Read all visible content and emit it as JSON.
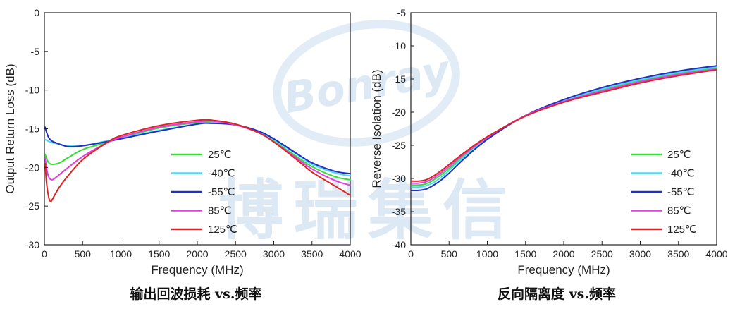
{
  "colors": {
    "25C": "#33dd33",
    "-40C": "#4fd8f0",
    "-55C": "#1f2fc8",
    "85C": "#e23ee3",
    "125C": "#e02222"
  },
  "watermark": {
    "logo_text": "Bonray",
    "chars": "博瑞集信"
  },
  "chart_data": [
    {
      "type": "line",
      "caption": "输出回波损耗 vs.频率",
      "xlabel": "Frequency (MHz)",
      "ylabel": "Output Return Loss (dB)",
      "xlim": [
        0,
        4000
      ],
      "ylim": [
        -30,
        0
      ],
      "xticks": [
        0,
        500,
        1000,
        1500,
        2000,
        2500,
        3000,
        3500,
        4000
      ],
      "yticks": [
        0,
        -5,
        -10,
        -15,
        -20,
        -25,
        -30
      ],
      "legend_position": "bottom-center",
      "series": [
        {
          "name": "25℃",
          "color_key": "25C",
          "x": [
            10,
            50,
            100,
            200,
            300,
            500,
            800,
            1000,
            1500,
            2000,
            2200,
            2500,
            2800,
            3000,
            3300,
            3500,
            3800,
            4000
          ],
          "y": [
            -18.3,
            -19.3,
            -19.6,
            -19.4,
            -18.8,
            -17.7,
            -16.8,
            -16.2,
            -14.9,
            -14.2,
            -14.1,
            -14.5,
            -15.5,
            -16.6,
            -18.6,
            -19.9,
            -21.2,
            -21.6
          ]
        },
        {
          "name": "-40℃",
          "color_key": "-40C",
          "x": [
            10,
            50,
            100,
            200,
            300,
            500,
            800,
            1000,
            1500,
            2000,
            2200,
            2500,
            2800,
            3000,
            3300,
            3500,
            3800,
            4000
          ],
          "y": [
            -16.4,
            -16.6,
            -16.8,
            -17.0,
            -17.2,
            -17.2,
            -16.6,
            -16.2,
            -15.2,
            -14.4,
            -14.2,
            -14.5,
            -15.4,
            -16.4,
            -18.3,
            -19.6,
            -20.7,
            -21.1
          ]
        },
        {
          "name": "-55℃",
          "color_key": "-55C",
          "x": [
            10,
            30,
            60,
            100,
            200,
            300,
            400,
            500,
            800,
            1000,
            1500,
            2000,
            2200,
            2500,
            2800,
            3000,
            3300,
            3500,
            3800,
            4000
          ],
          "y": [
            -14.8,
            -15.5,
            -16.2,
            -16.6,
            -17.0,
            -17.3,
            -17.3,
            -17.2,
            -16.7,
            -16.3,
            -15.3,
            -14.4,
            -14.3,
            -14.5,
            -15.3,
            -16.3,
            -18.2,
            -19.4,
            -20.5,
            -20.8
          ]
        },
        {
          "name": "85℃",
          "color_key": "85C",
          "x": [
            10,
            30,
            60,
            100,
            150,
            200,
            300,
            500,
            800,
            1000,
            1500,
            2000,
            2200,
            2500,
            2800,
            3000,
            3300,
            3500,
            3800,
            4000
          ],
          "y": [
            -18.8,
            -20.2,
            -21.3,
            -21.6,
            -21.3,
            -20.9,
            -20.1,
            -18.6,
            -16.9,
            -16.1,
            -14.8,
            -14.1,
            -14.0,
            -14.5,
            -15.5,
            -16.7,
            -18.8,
            -20.2,
            -21.7,
            -22.3
          ]
        },
        {
          "name": "125℃",
          "color_key": "125C",
          "x": [
            10,
            30,
            60,
            80,
            100,
            150,
            200,
            300,
            500,
            800,
            1000,
            1500,
            2000,
            2200,
            2500,
            2800,
            3000,
            3300,
            3500,
            3800,
            4000
          ],
          "y": [
            -19.5,
            -22.2,
            -24.0,
            -24.4,
            -24.2,
            -23.3,
            -22.5,
            -21.2,
            -19.0,
            -16.9,
            -15.9,
            -14.6,
            -13.9,
            -13.9,
            -14.4,
            -15.5,
            -16.7,
            -19.0,
            -20.6,
            -22.4,
            -23.6
          ]
        }
      ]
    },
    {
      "type": "line",
      "caption": "反向隔离度 vs.频率",
      "xlabel": "Frequency (MHz)",
      "ylabel": "Reverse Isolation (dB)",
      "xlim": [
        0,
        4000
      ],
      "ylim": [
        -40,
        -5
      ],
      "xticks": [
        0,
        500,
        1000,
        1500,
        2000,
        2500,
        3000,
        3500,
        4000
      ],
      "yticks": [
        -5,
        -10,
        -15,
        -20,
        -25,
        -30,
        -35,
        -40
      ],
      "legend_position": "bottom-right",
      "series": [
        {
          "name": "25℃",
          "color_key": "25C",
          "x": [
            10,
            100,
            200,
            300,
            400,
            500,
            700,
            1000,
            1500,
            2000,
            2500,
            3000,
            3500,
            4000
          ],
          "y": [
            -31.0,
            -31.0,
            -30.8,
            -30.2,
            -29.4,
            -28.5,
            -26.5,
            -23.9,
            -20.5,
            -18.3,
            -16.6,
            -15.2,
            -14.1,
            -13.3
          ]
        },
        {
          "name": "-40℃",
          "color_key": "-40C",
          "x": [
            10,
            100,
            200,
            300,
            400,
            500,
            700,
            1000,
            1500,
            2000,
            2500,
            3000,
            3500,
            4000
          ],
          "y": [
            -31.3,
            -31.3,
            -31.1,
            -30.6,
            -29.8,
            -28.8,
            -26.7,
            -24.0,
            -20.5,
            -18.2,
            -16.5,
            -15.1,
            -14.0,
            -13.2
          ]
        },
        {
          "name": "-55℃",
          "color_key": "-55C",
          "x": [
            10,
            100,
            200,
            300,
            400,
            500,
            700,
            1000,
            1500,
            2000,
            2500,
            3000,
            3500,
            4000
          ],
          "y": [
            -31.8,
            -31.8,
            -31.6,
            -31.0,
            -30.2,
            -29.2,
            -27.0,
            -24.1,
            -20.5,
            -18.1,
            -16.3,
            -14.9,
            -13.8,
            -13.0
          ]
        },
        {
          "name": "85℃",
          "color_key": "85C",
          "x": [
            10,
            100,
            200,
            300,
            400,
            500,
            700,
            1000,
            1500,
            2000,
            2500,
            3000,
            3500,
            4000
          ],
          "y": [
            -30.7,
            -30.7,
            -30.5,
            -29.9,
            -29.1,
            -28.2,
            -26.3,
            -23.8,
            -20.5,
            -18.4,
            -16.8,
            -15.4,
            -14.3,
            -13.5
          ]
        },
        {
          "name": "125℃",
          "color_key": "125C",
          "x": [
            10,
            100,
            200,
            300,
            400,
            500,
            700,
            1000,
            1500,
            2000,
            2500,
            3000,
            3500,
            4000
          ],
          "y": [
            -30.4,
            -30.4,
            -30.2,
            -29.6,
            -28.8,
            -27.9,
            -26.1,
            -23.7,
            -20.6,
            -18.5,
            -17.0,
            -15.6,
            -14.5,
            -13.6
          ]
        }
      ]
    }
  ]
}
